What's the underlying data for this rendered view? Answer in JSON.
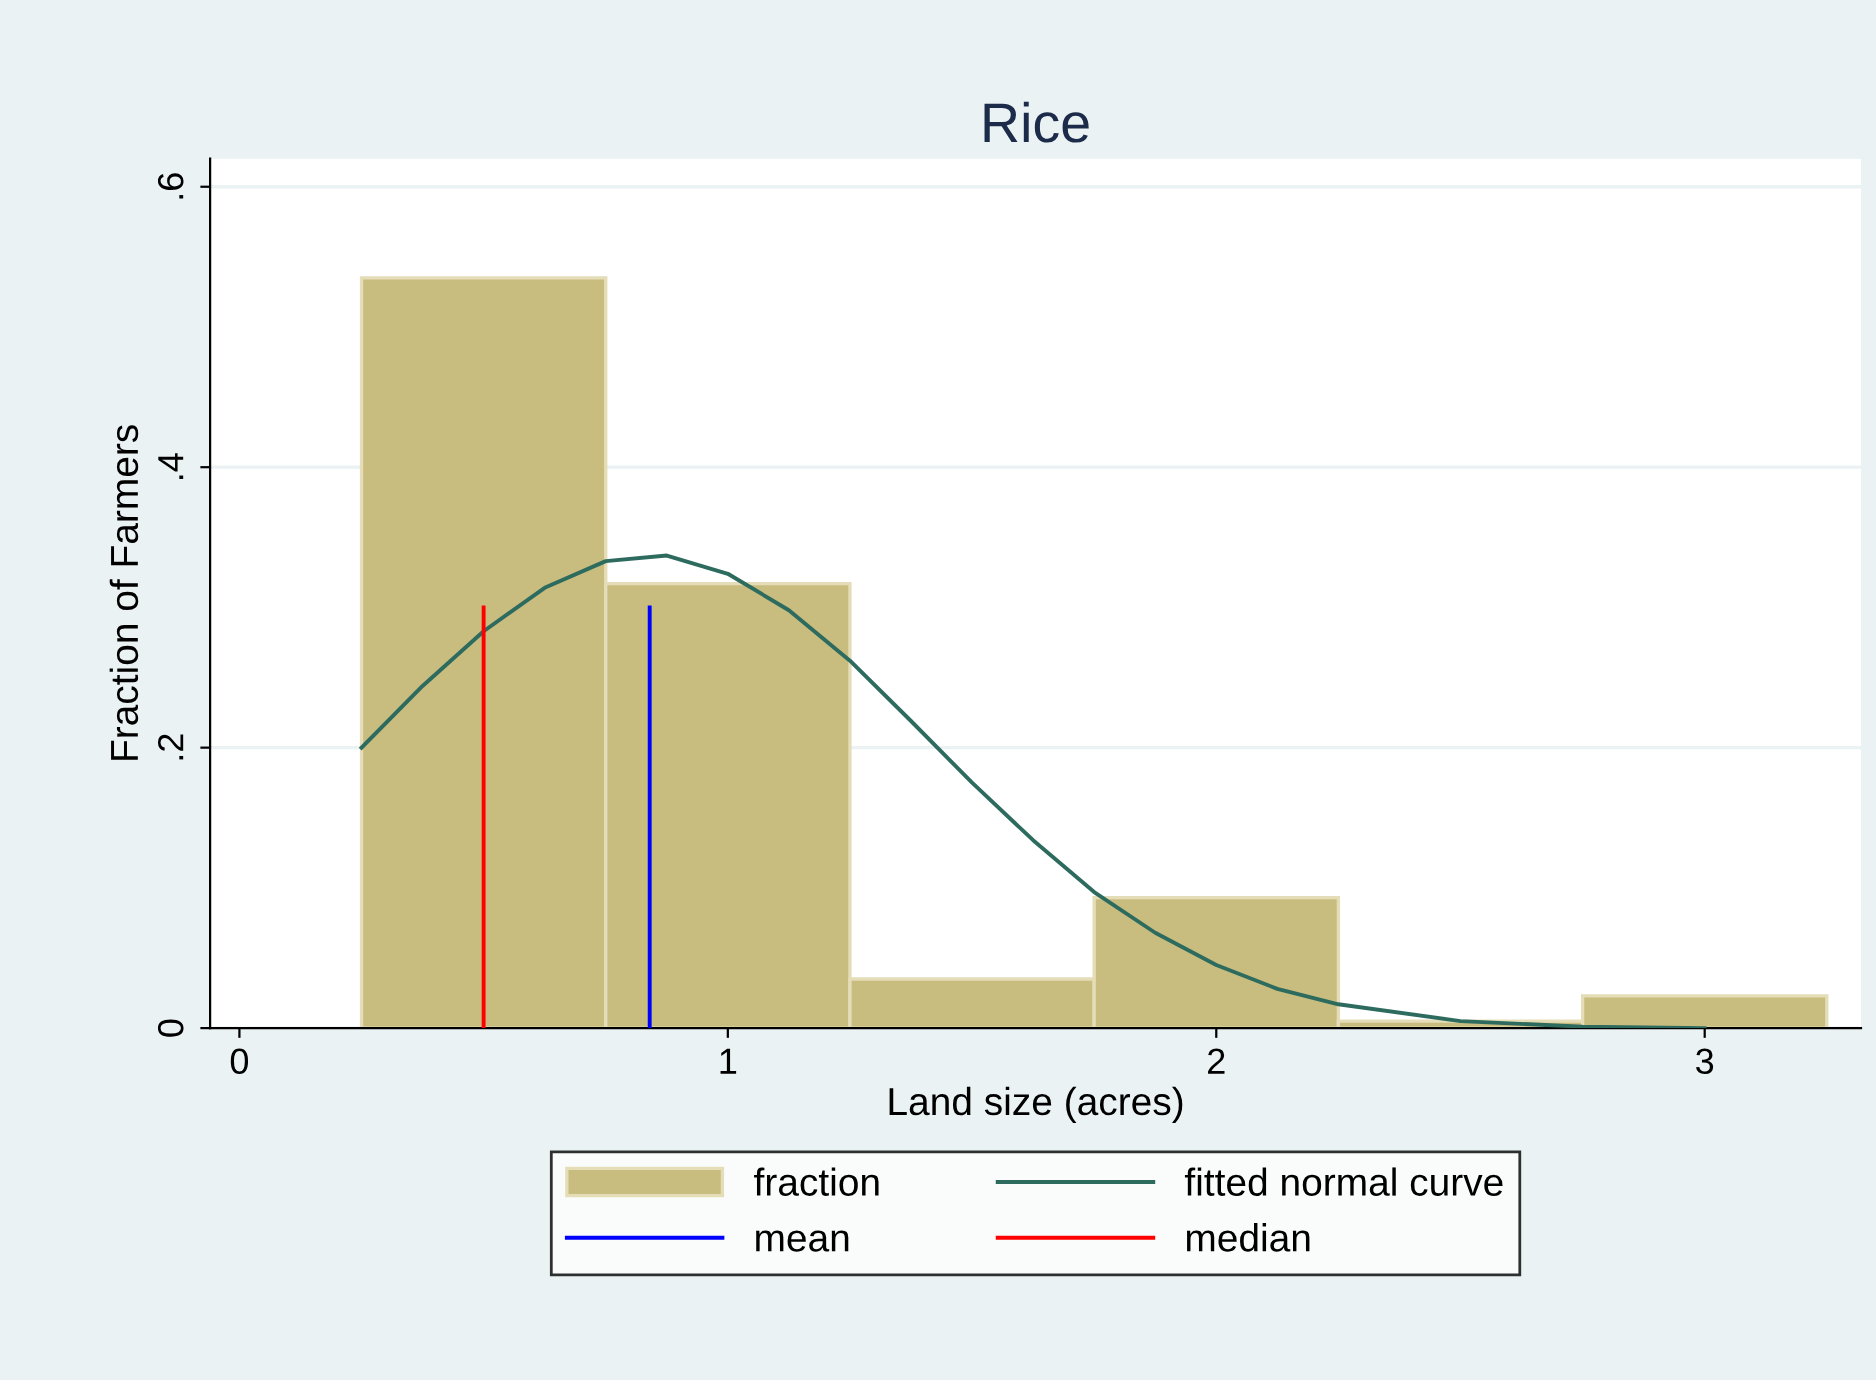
{
  "chart_data": {
    "type": "histogram",
    "title": "Rice",
    "xlabel": "Land size (acres)",
    "ylabel": "Fraction of Farmers",
    "xlim": [
      -0.06,
      3.32
    ],
    "ylim": [
      0,
      0.62
    ],
    "xticks": [
      0,
      1,
      2,
      3
    ],
    "yticks": [
      {
        "value": 0,
        "label": "0"
      },
      {
        "value": 0.2,
        "label": ".2"
      },
      {
        "value": 0.4,
        "label": ".4"
      },
      {
        "value": 0.6,
        "label": ".6"
      }
    ],
    "grid": "y",
    "legend": "bottom",
    "series": [
      {
        "name": "fraction",
        "color": "#c8bd7f",
        "bins": [
          0.25,
          0.75,
          1.25,
          1.75,
          2.25,
          2.75,
          3.25
        ],
        "values": [
          0.535,
          0.317,
          0.035,
          0.093,
          0.005,
          0.023
        ]
      },
      {
        "type": "line",
        "name": "fitted normal curve",
        "color": "#2e6b5f",
        "x": [
          0.25,
          0.375,
          0.5,
          0.625,
          0.75,
          0.875,
          1.0,
          1.125,
          1.25,
          1.375,
          1.5,
          1.625,
          1.75,
          1.875,
          2.0,
          2.125,
          2.25,
          2.5,
          2.75,
          3.0
        ],
        "values": [
          0.2,
          0.244,
          0.283,
          0.314,
          0.333,
          0.337,
          0.324,
          0.298,
          0.262,
          0.219,
          0.175,
          0.134,
          0.097,
          0.068,
          0.045,
          0.028,
          0.017,
          0.005,
          0.001,
          0.0
        ]
      },
      {
        "type": "line",
        "name": "mean",
        "color": "#0000ff",
        "x": [
          0.84,
          0.84
        ],
        "values": [
          0,
          0.3
        ]
      },
      {
        "type": "line",
        "name": "median",
        "color": "#ff0000",
        "x": [
          0.5,
          0.5
        ],
        "values": [
          0,
          0.3
        ]
      }
    ]
  }
}
